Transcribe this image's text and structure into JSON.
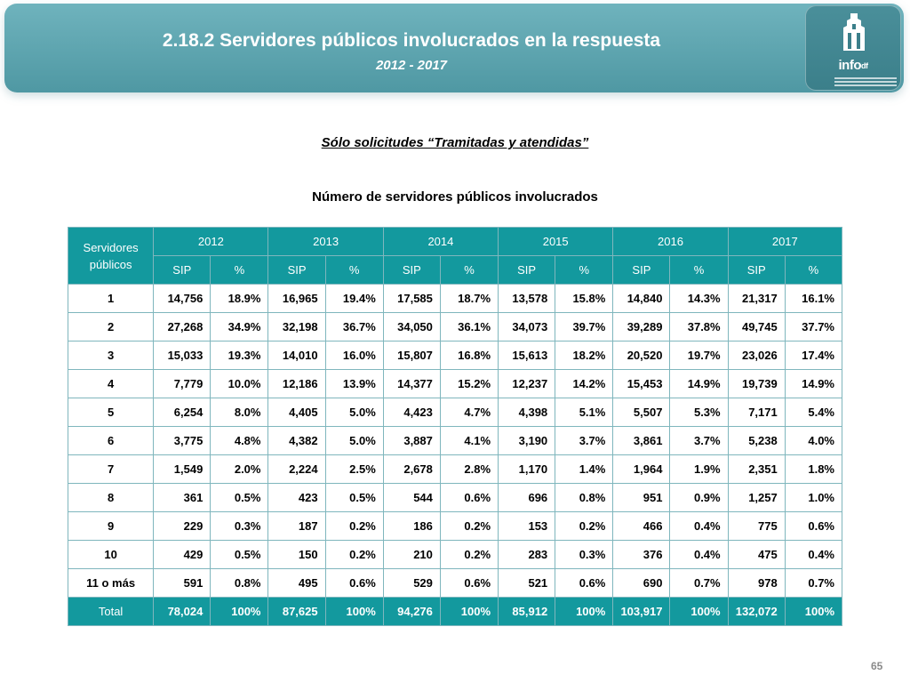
{
  "header": {
    "title": "2.18.2 Servidores públicos involucrados en la respuesta",
    "period": "2012 - 2017",
    "logo_text": "info",
    "logo_suffix": "df"
  },
  "subheading": "Sólo solicitudes “Tramitadas y atendidas”",
  "table_title": "Número de servidores públicos involucrados",
  "table": {
    "corner_header": "Servidores públicos",
    "years": [
      "2012",
      "2013",
      "2014",
      "2015",
      "2016",
      "2017"
    ],
    "subheaders": [
      "SIP",
      "%",
      "SIP",
      "%",
      "SIP",
      "%",
      "SIP",
      "%",
      "SIP",
      "%",
      "SIP",
      "%"
    ],
    "rows": [
      {
        "label": "1",
        "cells": [
          "14,756",
          "18.9%",
          "16,965",
          "19.4%",
          "17,585",
          "18.7%",
          "13,578",
          "15.8%",
          "14,840",
          "14.3%",
          "21,317",
          "16.1%"
        ]
      },
      {
        "label": "2",
        "cells": [
          "27,268",
          "34.9%",
          "32,198",
          "36.7%",
          "34,050",
          "36.1%",
          "34,073",
          "39.7%",
          "39,289",
          "37.8%",
          "49,745",
          "37.7%"
        ]
      },
      {
        "label": "3",
        "cells": [
          "15,033",
          "19.3%",
          "14,010",
          "16.0%",
          "15,807",
          "16.8%",
          "15,613",
          "18.2%",
          "20,520",
          "19.7%",
          "23,026",
          "17.4%"
        ]
      },
      {
        "label": "4",
        "cells": [
          "7,779",
          "10.0%",
          "12,186",
          "13.9%",
          "14,377",
          "15.2%",
          "12,237",
          "14.2%",
          "15,453",
          "14.9%",
          "19,739",
          "14.9%"
        ]
      },
      {
        "label": "5",
        "cells": [
          "6,254",
          "8.0%",
          "4,405",
          "5.0%",
          "4,423",
          "4.7%",
          "4,398",
          "5.1%",
          "5,507",
          "5.3%",
          "7,171",
          "5.4%"
        ]
      },
      {
        "label": "6",
        "cells": [
          "3,775",
          "4.8%",
          "4,382",
          "5.0%",
          "3,887",
          "4.1%",
          "3,190",
          "3.7%",
          "3,861",
          "3.7%",
          "5,238",
          "4.0%"
        ]
      },
      {
        "label": "7",
        "cells": [
          "1,549",
          "2.0%",
          "2,224",
          "2.5%",
          "2,678",
          "2.8%",
          "1,170",
          "1.4%",
          "1,964",
          "1.9%",
          "2,351",
          "1.8%"
        ]
      },
      {
        "label": "8",
        "cells": [
          "361",
          "0.5%",
          "423",
          "0.5%",
          "544",
          "0.6%",
          "696",
          "0.8%",
          "951",
          "0.9%",
          "1,257",
          "1.0%"
        ]
      },
      {
        "label": "9",
        "cells": [
          "229",
          "0.3%",
          "187",
          "0.2%",
          "186",
          "0.2%",
          "153",
          "0.2%",
          "466",
          "0.4%",
          "775",
          "0.6%"
        ]
      },
      {
        "label": "10",
        "cells": [
          "429",
          "0.5%",
          "150",
          "0.2%",
          "210",
          "0.2%",
          "283",
          "0.3%",
          "376",
          "0.4%",
          "475",
          "0.4%"
        ]
      },
      {
        "label": "11 o más",
        "cells": [
          "591",
          "0.8%",
          "495",
          "0.6%",
          "529",
          "0.6%",
          "521",
          "0.6%",
          "690",
          "0.7%",
          "978",
          "0.7%"
        ]
      }
    ],
    "total": {
      "label": "Total",
      "cells": [
        "78,024",
        "100%",
        "87,625",
        "100%",
        "94,276",
        "100%",
        "85,912",
        "100%",
        "103,917",
        "100%",
        "132,072",
        "100%"
      ]
    }
  },
  "page_number": "65",
  "colors": {
    "banner": "#5aa4ae",
    "table_header": "#13999e",
    "grid": "#7fb6bd"
  }
}
